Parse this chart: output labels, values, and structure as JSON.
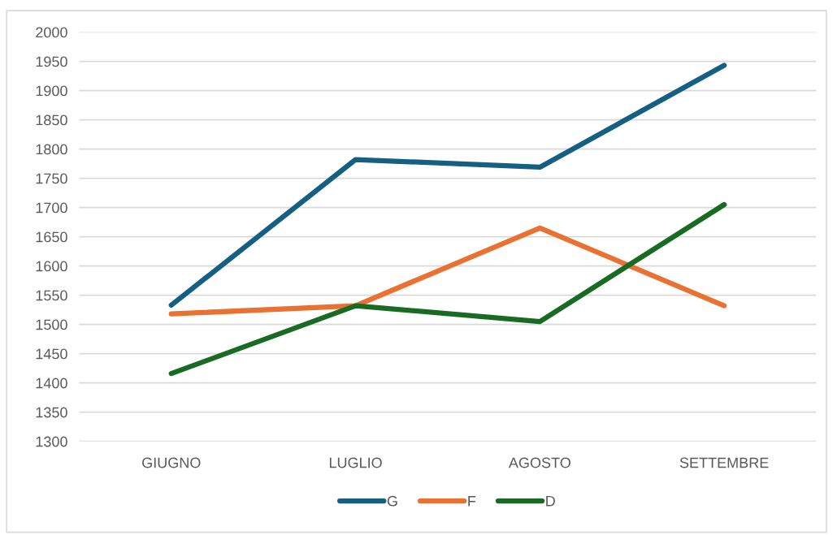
{
  "chart_data": {
    "type": "line",
    "categories": [
      "GIUGNO",
      "LUGLIO",
      "AGOSTO",
      "SETTEMBRE"
    ],
    "series": [
      {
        "name": "G",
        "color": "#156082",
        "values": [
          1533,
          1782,
          1769,
          1943
        ]
      },
      {
        "name": "F",
        "color": "#e97132",
        "values": [
          1518,
          1532,
          1665,
          1532
        ]
      },
      {
        "name": "D",
        "color": "#196b24",
        "values": [
          1416,
          1532,
          1505,
          1705
        ]
      }
    ],
    "ylim": [
      1300,
      2000
    ],
    "yticks": [
      1300,
      1350,
      1400,
      1450,
      1500,
      1550,
      1600,
      1650,
      1700,
      1750,
      1800,
      1850,
      1900,
      1950,
      2000
    ],
    "grid": "y",
    "legend": "bottom",
    "marker": "none",
    "line_style": "solid"
  }
}
